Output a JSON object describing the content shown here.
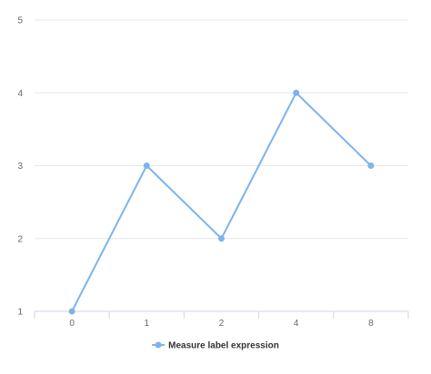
{
  "chart_data": {
    "type": "line",
    "categories": [
      "0",
      "1",
      "2",
      "4",
      "8"
    ],
    "series": [
      {
        "name": "Measure label expression",
        "values": [
          1,
          3,
          2,
          4,
          3
        ],
        "color": "#7cb5ec"
      }
    ],
    "ylim": [
      1,
      5
    ],
    "yticks": [
      1,
      2,
      3,
      4,
      5
    ],
    "grid": true,
    "legend": "bottom-center",
    "title": "",
    "xlabel": "",
    "ylabel": ""
  }
}
